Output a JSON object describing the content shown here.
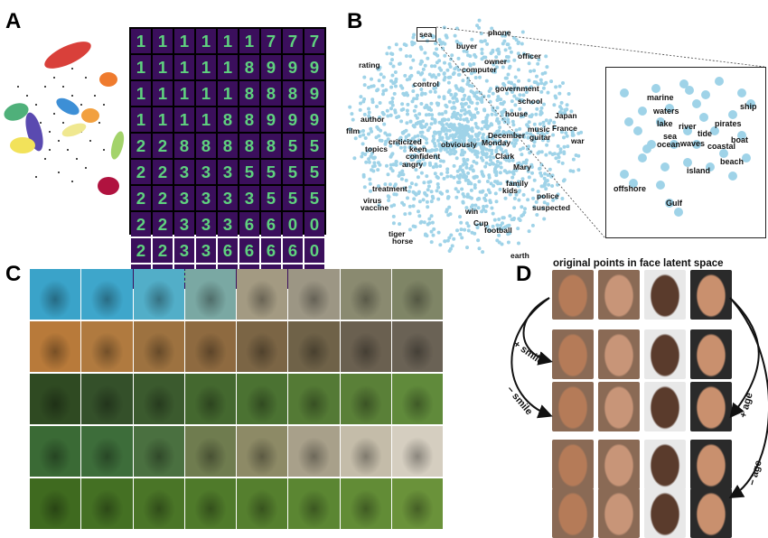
{
  "panel_letters": [
    "A",
    "B",
    "C",
    "D"
  ],
  "panel_b": {
    "words": [
      "sea",
      "phone",
      "buyer",
      "officer",
      "owner",
      "computer",
      "rating",
      "control",
      "government",
      "school",
      "house",
      "author",
      "Japan",
      "film",
      "music",
      "guitar",
      "France",
      "December",
      "war",
      "criticized",
      "topics",
      "obviously",
      "Monday",
      "keen",
      "confident",
      "angry",
      "Clark",
      "Mary",
      "family",
      "kids",
      "treatment",
      "police",
      "virus",
      "suspected",
      "vaccine",
      "win",
      "Cup",
      "football",
      "tiger",
      "horse",
      "earth"
    ],
    "zoom_words": [
      "marine",
      "waters",
      "ship",
      "lake",
      "river",
      "pirates",
      "tide",
      "sea",
      "boat",
      "ocean",
      "waves",
      "coastal",
      "beach",
      "island",
      "offshore",
      "Gulf"
    ]
  },
  "panel_d": {
    "title": "original points in face latent space",
    "arrow_labels": [
      "+ smile",
      "− smile",
      "+ age",
      "− age"
    ]
  },
  "colors": {
    "scatter_dot": "#9fd3e8",
    "mnist_bg": "#3b0f5c",
    "mnist_digit": "#5fd17f"
  }
}
